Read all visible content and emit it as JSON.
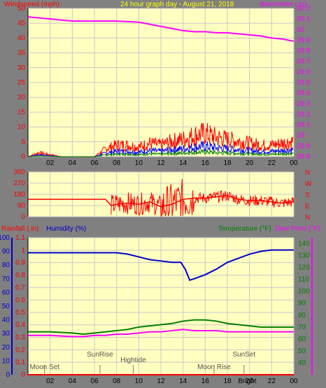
{
  "title": "24 hour graph day - August 21, 2018",
  "colors": {
    "background": "#808080",
    "plot_bg": "#ffffc0",
    "grid": "#c8c8c8",
    "wind": "#ff0000",
    "gust_band": "#0000ff",
    "calm": "#008000",
    "barometer": "#ff00ff",
    "humidity": "#0000cc",
    "temperature": "#008000",
    "dew_point": "#ff00ff",
    "rain": "#ff0000",
    "title": "#ffff00"
  },
  "chart_data": [
    {
      "type": "line",
      "name": "wind-barometer",
      "title": "24 hour graph day - August 21, 2018",
      "left_label": "Windspeed (mph)",
      "right_label": "Barometer (.in)",
      "y_left": {
        "range": [
          0,
          50
        ],
        "ticks": [
          "0",
          "5",
          "10",
          "15",
          "20",
          "25",
          "30",
          "35",
          "40",
          "45",
          "50"
        ]
      },
      "y_right": {
        "range": [
          28.8,
          30.2
        ],
        "ticks": [
          "28.8",
          "28.9",
          "29",
          "29.1",
          "29.2",
          "29.3",
          "29.4",
          "29.5",
          "29.6",
          "29.7",
          "29.8",
          "29.9",
          "30",
          "30.1",
          "30.2"
        ]
      },
      "x_ticks": [
        "02",
        "04",
        "06",
        "08",
        "10",
        "12",
        "14",
        "16",
        "18",
        "20",
        "22",
        "00"
      ],
      "barometer_points": [
        [
          0,
          30.12
        ],
        [
          2,
          30.1
        ],
        [
          4,
          30.08
        ],
        [
          6,
          30.08
        ],
        [
          8,
          30.08
        ],
        [
          10,
          30.07
        ],
        [
          11,
          30.05
        ],
        [
          12,
          30.03
        ],
        [
          13,
          30.01
        ],
        [
          14,
          29.99
        ],
        [
          15,
          29.98
        ],
        [
          16,
          29.98
        ],
        [
          17,
          29.97
        ],
        [
          18,
          29.97
        ],
        [
          19,
          29.96
        ],
        [
          20,
          29.95
        ],
        [
          21,
          29.94
        ],
        [
          22,
          29.92
        ],
        [
          23,
          29.91
        ],
        [
          24,
          29.89
        ]
      ],
      "wind_envelope": [
        [
          0,
          0
        ],
        [
          1,
          2
        ],
        [
          2,
          1
        ],
        [
          3,
          0
        ],
        [
          4,
          0
        ],
        [
          5,
          0
        ],
        [
          6,
          0
        ],
        [
          7,
          4
        ],
        [
          8,
          6
        ],
        [
          9,
          6
        ],
        [
          10,
          5
        ],
        [
          11,
          7
        ],
        [
          12,
          6
        ],
        [
          13,
          8
        ],
        [
          14,
          9
        ],
        [
          15,
          11
        ],
        [
          16,
          12
        ],
        [
          17,
          10
        ],
        [
          18,
          9
        ],
        [
          19,
          8
        ],
        [
          20,
          7
        ],
        [
          21,
          6
        ],
        [
          22,
          6
        ],
        [
          23,
          7
        ],
        [
          24,
          8
        ]
      ]
    },
    {
      "type": "line",
      "name": "wind-direction",
      "y_ticks": [
        "360",
        "270",
        "180",
        "90",
        "0"
      ],
      "compass": [
        "N",
        "W",
        "S",
        "E",
        "N"
      ],
      "direction_points": [
        [
          0,
          140
        ],
        [
          6,
          140
        ],
        [
          7,
          140
        ],
        [
          7.5,
          90
        ],
        [
          8,
          100
        ],
        [
          9,
          110
        ],
        [
          10,
          100
        ],
        [
          11,
          120
        ],
        [
          12,
          80
        ],
        [
          13,
          100
        ],
        [
          14,
          140
        ],
        [
          15,
          150
        ],
        [
          16,
          150
        ],
        [
          17,
          160
        ],
        [
          18,
          170
        ],
        [
          19,
          140
        ],
        [
          20,
          130
        ],
        [
          21,
          130
        ],
        [
          22,
          120
        ],
        [
          23,
          110
        ],
        [
          24,
          120
        ]
      ]
    },
    {
      "type": "line",
      "name": "humidity-temperature",
      "left_labels": [
        "Rainfall (.in)",
        "Humidity (%)"
      ],
      "right_labels": [
        "Temperature (°F)",
        "Dew Point (°F)"
      ],
      "y_left_rain": {
        "range": [
          0,
          1.1
        ],
        "ticks": [
          "0",
          "0.1",
          "0.2",
          "0.3",
          "0.4",
          "0.5",
          "0.6",
          "0.7",
          "0.8",
          "0.9",
          "1",
          "1.1"
        ]
      },
      "y_left_humidity": {
        "range": [
          0,
          100
        ],
        "ticks": [
          "0",
          "10",
          "20",
          "30",
          "40",
          "50",
          "60",
          "70",
          "80",
          "90",
          "100"
        ]
      },
      "y_right": {
        "range": [
          30,
          145
        ],
        "ticks": [
          "40",
          "50",
          "60",
          "70",
          "80",
          "90",
          "100",
          "110",
          "120",
          "130",
          "140"
        ]
      },
      "x_ticks": [
        "02",
        "04",
        "06",
        "08",
        "10",
        "12",
        "14",
        "16",
        "18",
        "20",
        "22",
        "00"
      ],
      "humidity": [
        [
          0,
          89
        ],
        [
          2,
          89
        ],
        [
          4,
          89
        ],
        [
          6,
          89
        ],
        [
          8,
          89
        ],
        [
          9,
          88
        ],
        [
          10,
          86
        ],
        [
          11,
          84
        ],
        [
          12,
          83
        ],
        [
          13,
          82
        ],
        [
          13.8,
          82
        ],
        [
          14.2,
          77
        ],
        [
          14.6,
          69
        ],
        [
          15,
          70
        ],
        [
          16,
          73
        ],
        [
          17,
          77
        ],
        [
          18,
          82
        ],
        [
          19,
          85
        ],
        [
          20,
          88
        ],
        [
          21,
          90
        ],
        [
          22,
          91
        ],
        [
          23,
          91
        ],
        [
          24,
          91
        ]
      ],
      "temperature": [
        [
          0,
          66
        ],
        [
          2,
          66
        ],
        [
          4,
          65
        ],
        [
          5,
          64
        ],
        [
          6,
          65
        ],
        [
          7,
          66
        ],
        [
          8,
          67
        ],
        [
          9,
          68
        ],
        [
          10,
          70
        ],
        [
          11,
          71
        ],
        [
          12,
          72
        ],
        [
          13,
          73
        ],
        [
          14,
          75
        ],
        [
          15,
          76
        ],
        [
          16,
          76
        ],
        [
          17,
          75
        ],
        [
          18,
          73
        ],
        [
          19,
          72
        ],
        [
          20,
          71
        ],
        [
          21,
          70
        ],
        [
          22,
          70
        ],
        [
          23,
          70
        ],
        [
          24,
          70
        ]
      ],
      "dew_point": [
        [
          0,
          63
        ],
        [
          2,
          63
        ],
        [
          4,
          62
        ],
        [
          5,
          62
        ],
        [
          6,
          63
        ],
        [
          7,
          63
        ],
        [
          8,
          64
        ],
        [
          9,
          64
        ],
        [
          10,
          65
        ],
        [
          11,
          66
        ],
        [
          12,
          66
        ],
        [
          13,
          67
        ],
        [
          14,
          68
        ],
        [
          15,
          67
        ],
        [
          16,
          67
        ],
        [
          17,
          67
        ],
        [
          18,
          66
        ],
        [
          19,
          66
        ],
        [
          20,
          66
        ],
        [
          21,
          66
        ],
        [
          22,
          66
        ],
        [
          23,
          66
        ],
        [
          24,
          66
        ]
      ],
      "rain": [
        [
          0,
          0
        ],
        [
          24,
          0
        ]
      ],
      "events": [
        {
          "label": "Moon Set",
          "t": 1.5
        },
        {
          "label": "SunRise",
          "t": 6.5
        },
        {
          "label": "Hightide",
          "t": 9.5
        },
        {
          "label": "Moon Rise",
          "t": 16.8
        },
        {
          "label": "SunSet",
          "t": 19.5
        }
      ],
      "x_bottom_extra": "Bright"
    }
  ]
}
